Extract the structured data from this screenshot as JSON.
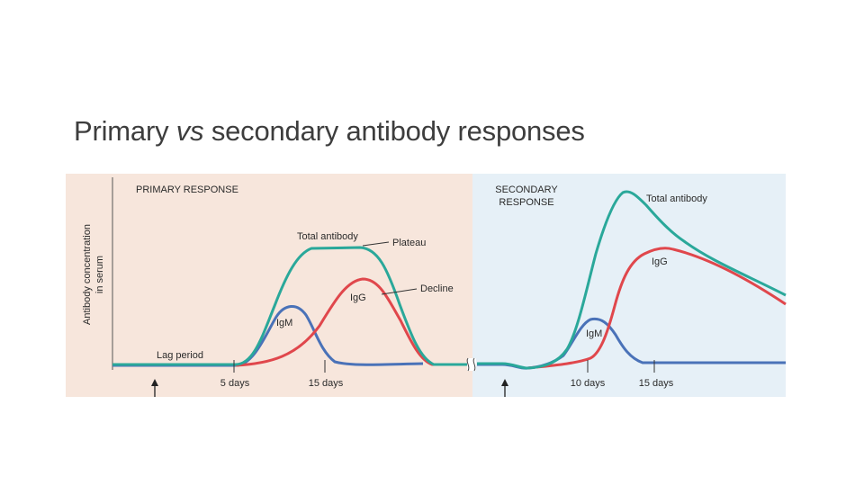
{
  "title": {
    "part1": "Primary ",
    "italic": "vs",
    "part2": " secondary antibody responses"
  },
  "y_axis_label": {
    "line1": "Antibody concentration",
    "line2": "in serum"
  },
  "primary": {
    "heading": "PRIMARY RESPONSE",
    "labels": {
      "total": "Total antibody",
      "plateau": "Plateau",
      "igg": "IgG",
      "decline": "Decline",
      "igm": "IgM",
      "lag": "Lag period"
    },
    "ticks": [
      "5 days",
      "15 days"
    ]
  },
  "secondary": {
    "heading_line1": "SECONDARY",
    "heading_line2": "RESPONSE",
    "labels": {
      "total": "Total antibody",
      "igg": "IgG",
      "igm": "IgM"
    },
    "ticks": [
      "10 days",
      "15 days"
    ]
  },
  "colors": {
    "primary_bg": "#f7e6dc",
    "secondary_bg": "#e6f0f7",
    "total": "#2aa89a",
    "igg": "#e0474c",
    "igm": "#4a72b8"
  }
}
